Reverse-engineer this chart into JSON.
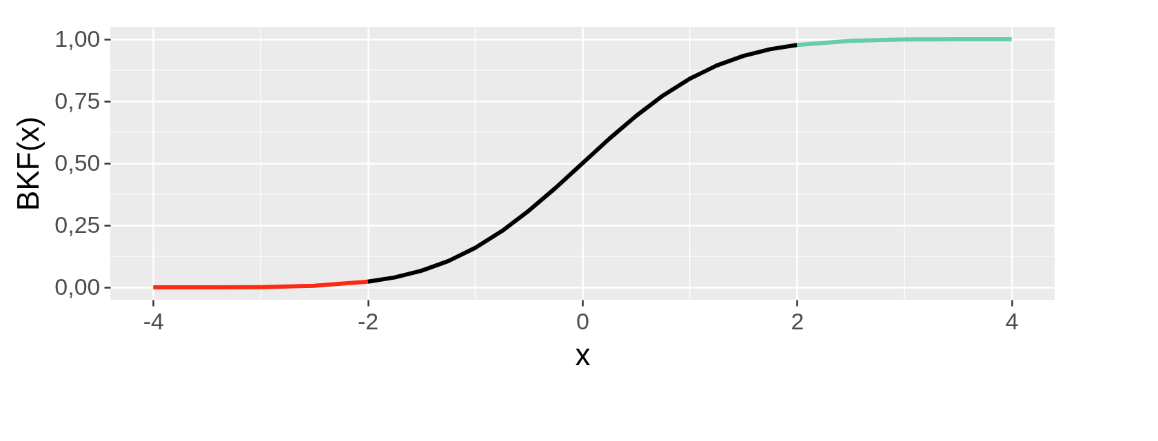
{
  "chart_data": {
    "type": "line",
    "xlabel": "x",
    "ylabel": "BKF(x)",
    "series": [
      {
        "color": "#fc2a0f",
        "x": [
          -4,
          -3.5,
          -3,
          -2.5,
          -2
        ],
        "values": [
          0.0,
          0.0,
          0.001,
          0.006,
          0.023
        ]
      },
      {
        "color": "#000000",
        "x": [
          -2,
          -1.75,
          -1.5,
          -1.25,
          -1,
          -0.75,
          -0.5,
          -0.25,
          0,
          0.25,
          0.5,
          0.75,
          1,
          1.25,
          1.5,
          1.75,
          2
        ],
        "values": [
          0.023,
          0.04,
          0.067,
          0.106,
          0.159,
          0.227,
          0.309,
          0.401,
          0.5,
          0.599,
          0.691,
          0.773,
          0.841,
          0.894,
          0.933,
          0.96,
          0.977
        ]
      },
      {
        "color": "#66cdaa",
        "x": [
          2,
          2.5,
          3,
          3.5,
          4
        ],
        "values": [
          0.977,
          0.994,
          0.999,
          1.0,
          1.0
        ]
      }
    ],
    "xlim": [
      -4.4,
      4.4
    ],
    "xticks": [
      -4,
      -2,
      0,
      2,
      4
    ],
    "ylim": [
      -0.05,
      1.05
    ],
    "yticks": [
      {
        "value": 0,
        "label": "0,00"
      },
      {
        "value": 0.25,
        "label": "0,25"
      },
      {
        "value": 0.5,
        "label": "0,50"
      },
      {
        "value": 0.75,
        "label": "0,75"
      },
      {
        "value": 1,
        "label": "1,00"
      }
    ],
    "grid": true,
    "line_style": "solid",
    "marker": "none"
  }
}
